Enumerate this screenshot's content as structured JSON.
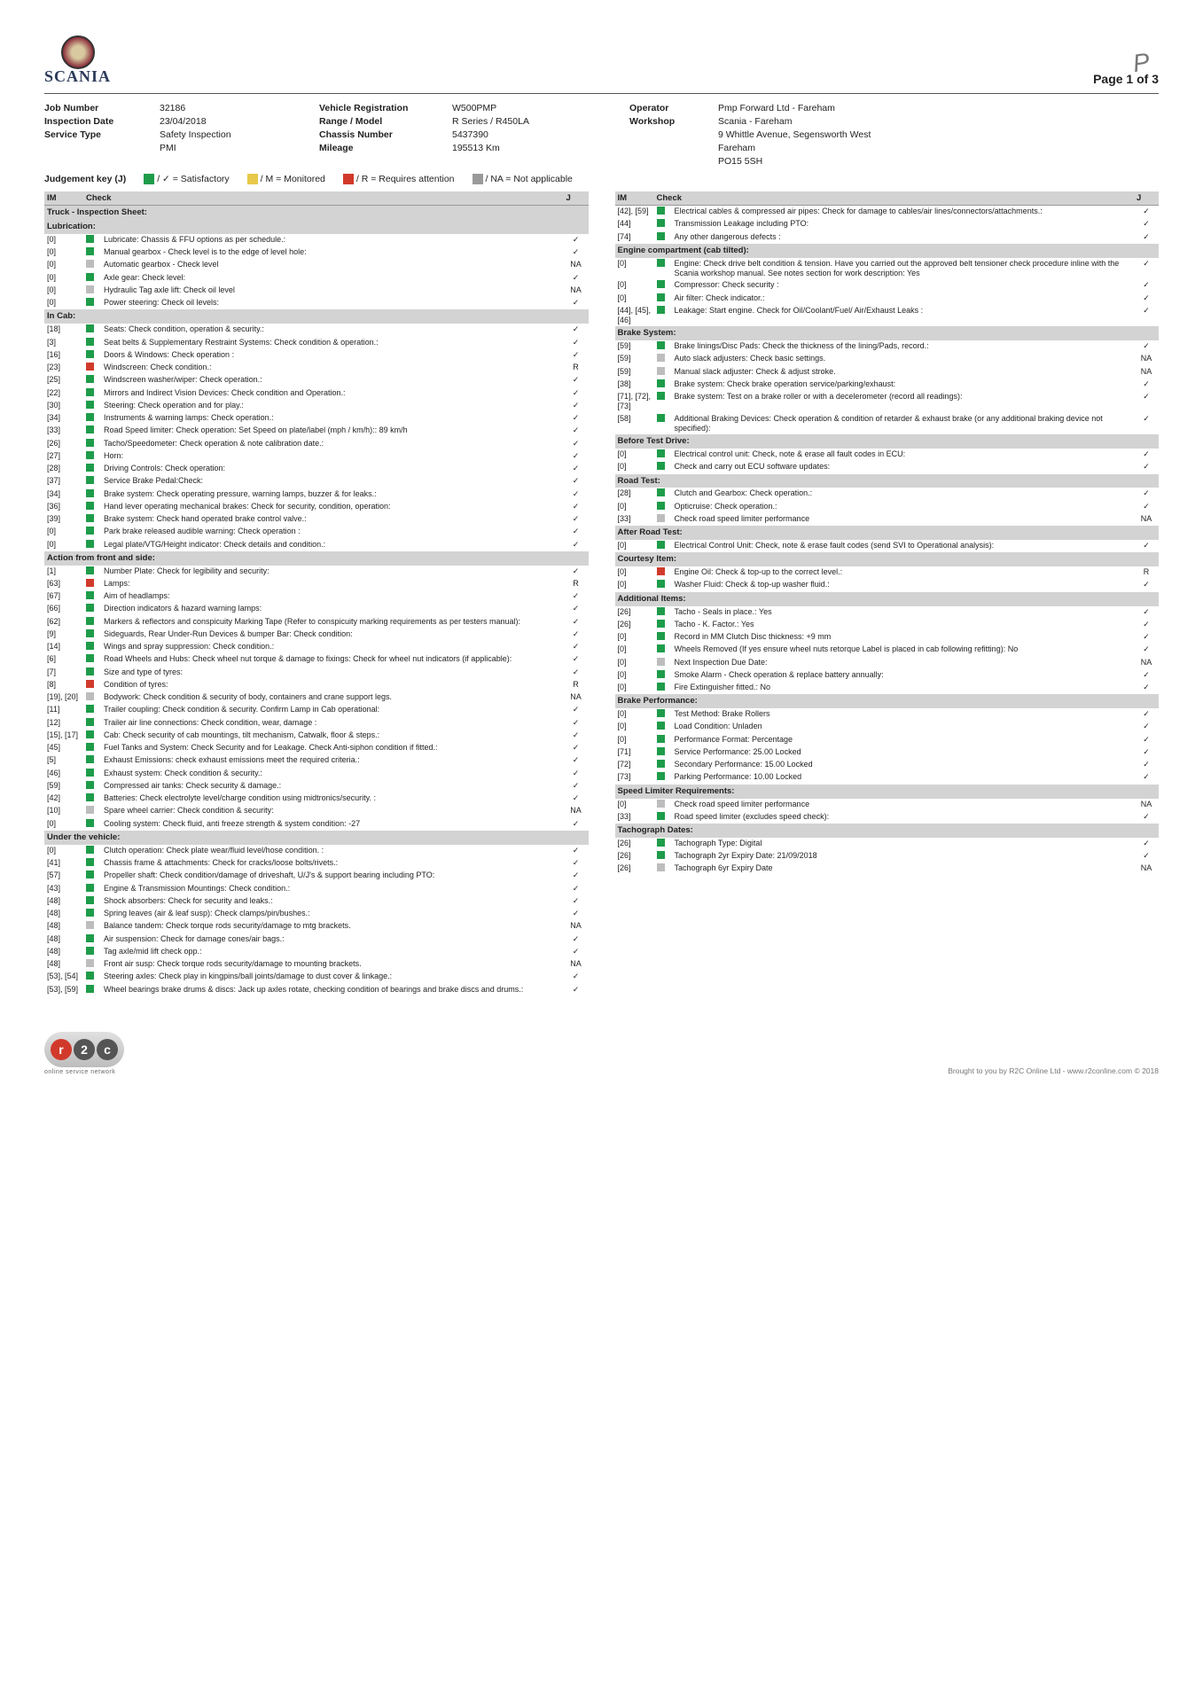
{
  "page": {
    "num": "Page 1 of 3"
  },
  "logo": {
    "text": "SCANIA"
  },
  "initials": "P",
  "header": {
    "rows": [
      [
        "Job Number",
        "32186",
        "Vehicle Registration",
        "W500PMP",
        "Operator",
        "Pmp Forward Ltd - Fareham"
      ],
      [
        "Inspection Date",
        "23/04/2018",
        "Range / Model",
        "R Series / R450LA",
        "Workshop",
        "Scania - Fareham"
      ],
      [
        "Service Type",
        "Safety Inspection",
        "Chassis Number",
        "5437390",
        "",
        "9 Whittle Avenue, Segensworth West"
      ],
      [
        "",
        "PMI",
        "Mileage",
        "195513 Km",
        "",
        "Fareham"
      ],
      [
        "",
        "",
        "",
        "",
        "",
        "PO15 5SH"
      ]
    ]
  },
  "jkey": {
    "label": "Judgement key (J)",
    "items": [
      {
        "color": "g",
        "text": "/ ✓ = Satisfactory"
      },
      {
        "color": "y",
        "text": "/ M = Monitored"
      },
      {
        "color": "r",
        "text": "/ R = Requires attention"
      },
      {
        "color": "gr",
        "text": "/ NA = Not applicable"
      }
    ]
  },
  "th": {
    "im": "IM",
    "check": "Check",
    "j": "J"
  },
  "left": [
    {
      "section": "Truck - Inspection Sheet:"
    },
    {
      "section": "Lubrication:"
    },
    {
      "im": "[0]",
      "c": "g",
      "t": "Lubricate: Chassis & FFU options as per schedule.:",
      "j": "✓"
    },
    {
      "im": "[0]",
      "c": "g",
      "t": "Manual gearbox - Check level is to the edge of level hole:",
      "j": "✓"
    },
    {
      "im": "[0]",
      "c": "gr",
      "t": "Automatic gearbox - Check level",
      "j": "NA"
    },
    {
      "im": "[0]",
      "c": "g",
      "t": "Axle gear: Check level:",
      "j": "✓"
    },
    {
      "im": "[0]",
      "c": "gr",
      "t": "Hydraulic Tag axle lift: Check oil level",
      "j": "NA"
    },
    {
      "im": "[0]",
      "c": "g",
      "t": "Power steering: Check oil levels:",
      "j": "✓"
    },
    {
      "section": "In Cab:"
    },
    {
      "im": "[18]",
      "c": "g",
      "t": "Seats: Check condition, operation & security.:",
      "j": "✓"
    },
    {
      "im": "[3]",
      "c": "g",
      "t": "Seat belts & Supplementary Restraint Systems: Check condition & operation.:",
      "j": "✓"
    },
    {
      "im": "[16]",
      "c": "g",
      "t": "Doors & Windows: Check operation :",
      "j": "✓"
    },
    {
      "im": "[23]",
      "c": "r",
      "t": "Windscreen: Check condition.:",
      "j": "R"
    },
    {
      "im": "[25]",
      "c": "g",
      "t": "Windscreen washer/wiper: Check operation.:",
      "j": "✓"
    },
    {
      "im": "[22]",
      "c": "g",
      "t": "Mirrors and Indirect Vision Devices: Check condition and Operation.:",
      "j": "✓"
    },
    {
      "im": "[30]",
      "c": "g",
      "t": "Steering: Check operation and for play.:",
      "j": "✓"
    },
    {
      "im": "[34]",
      "c": "g",
      "t": "Instruments & warning lamps: Check operation.:",
      "j": "✓"
    },
    {
      "im": "[33]",
      "c": "g",
      "t": "Road Speed limiter:  Check operation: Set Speed on plate/label (mph / km/h):: 89 km/h",
      "j": "✓"
    },
    {
      "im": "[26]",
      "c": "g",
      "t": "Tacho/Speedometer: Check operation & note calibration date.:",
      "j": "✓"
    },
    {
      "im": "[27]",
      "c": "g",
      "t": "Horn:",
      "j": "✓"
    },
    {
      "im": "[28]",
      "c": "g",
      "t": "Driving Controls: Check operation:",
      "j": "✓"
    },
    {
      "im": "[37]",
      "c": "g",
      "t": "Service Brake Pedal:Check:",
      "j": "✓"
    },
    {
      "im": "[34]",
      "c": "g",
      "t": "Brake system: Check operating pressure, warning lamps, buzzer & for leaks.:",
      "j": "✓"
    },
    {
      "im": "[36]",
      "c": "g",
      "t": "Hand lever operating mechanical brakes: Check for security, condition, operation:",
      "j": "✓"
    },
    {
      "im": "[39]",
      "c": "g",
      "t": "Brake system: Check hand operated brake control valve.:",
      "j": "✓"
    },
    {
      "im": "[0]",
      "c": "g",
      "t": "Park brake released audible warning: Check operation :",
      "j": "✓"
    },
    {
      "im": "[0]",
      "c": "g",
      "t": "Legal plate/VTG/Height indicator: Check details and condition.:",
      "j": "✓"
    },
    {
      "section": "Action from front and side:"
    },
    {
      "im": "[1]",
      "c": "g",
      "t": "Number Plate: Check for legibility and security:",
      "j": "✓"
    },
    {
      "im": "[63]",
      "c": "r",
      "t": "Lamps:",
      "j": "R"
    },
    {
      "im": "[67]",
      "c": "g",
      "t": "Aim of headlamps:",
      "j": "✓"
    },
    {
      "im": "[66]",
      "c": "g",
      "t": "Direction indicators & hazard warning lamps:",
      "j": "✓"
    },
    {
      "im": "[62]",
      "c": "g",
      "t": "Markers & reflectors and conspicuity Marking Tape (Refer to conspicuity marking requirements as per testers manual):",
      "j": "✓"
    },
    {
      "im": "[9]",
      "c": "g",
      "t": "Sideguards, Rear Under-Run Devices & bumper Bar: Check condition:",
      "j": "✓"
    },
    {
      "im": "[14]",
      "c": "g",
      "t": "Wings and spray suppression: Check condition.:",
      "j": "✓"
    },
    {
      "im": "[6]",
      "c": "g",
      "t": "Road Wheels and Hubs: Check wheel nut torque & damage to fixings: Check for wheel nut indicators (if applicable):",
      "j": "✓"
    },
    {
      "im": "[7]",
      "c": "g",
      "t": "Size and type of tyres:",
      "j": "✓"
    },
    {
      "im": "[8]",
      "c": "r",
      "t": "Condition of tyres:",
      "j": "R"
    },
    {
      "im": "[19], [20]",
      "c": "gr",
      "t": "Bodywork: Check condition & security of body, containers and crane support legs.",
      "j": "NA"
    },
    {
      "im": "[11]",
      "c": "g",
      "t": "Trailer coupling: Check condition & security. Confirm Lamp in Cab operational:",
      "j": "✓"
    },
    {
      "im": "[12]",
      "c": "g",
      "t": "Trailer air line connections: Check condition, wear, damage :",
      "j": "✓"
    },
    {
      "im": "[15], [17]",
      "c": "g",
      "t": "Cab: Check security of cab mountings, tilt mechanism, Catwalk, floor & steps.:",
      "j": "✓"
    },
    {
      "im": "[45]",
      "c": "g",
      "t": "Fuel Tanks and System: Check Security and for Leakage. Check Anti-siphon condition if fitted.:",
      "j": "✓"
    },
    {
      "im": "[5]",
      "c": "g",
      "t": "Exhaust Emissions: check exhaust emissions meet the required criteria.:",
      "j": "✓"
    },
    {
      "im": "[46]",
      "c": "g",
      "t": "Exhaust system: Check condition & security.:",
      "j": "✓"
    },
    {
      "im": "[59]",
      "c": "g",
      "t": "Compressed air tanks: Check security & damage.:",
      "j": "✓"
    },
    {
      "im": "[42]",
      "c": "g",
      "t": "Batteries: Check electrolyte level/charge condition using midtronics/security.  :",
      "j": "✓"
    },
    {
      "im": "[10]",
      "c": "gr",
      "t": "Spare wheel carrier: Check condition & security:",
      "j": "NA"
    },
    {
      "im": "[0]",
      "c": "g",
      "t": "Cooling system: Check fluid, anti freeze strength & system condition: -27",
      "j": "✓"
    },
    {
      "section": "Under the vehicle:"
    },
    {
      "im": "[0]",
      "c": "g",
      "t": "Clutch operation: Check plate wear/fluid level/hose condition.  :",
      "j": "✓"
    },
    {
      "im": "[41]",
      "c": "g",
      "t": "Chassis frame & attachments: Check for cracks/loose bolts/rivets.:",
      "j": "✓"
    },
    {
      "im": "[57]",
      "c": "g",
      "t": "Propeller shaft: Check condition/damage of driveshaft, U/J's & support bearing including PTO:",
      "j": "✓"
    },
    {
      "im": "[43]",
      "c": "g",
      "t": "Engine & Transmission Mountings: Check condition.:",
      "j": "✓"
    },
    {
      "im": "[48]",
      "c": "g",
      "t": "Shock absorbers: Check for security and leaks.:",
      "j": "✓"
    },
    {
      "im": "[48]",
      "c": "g",
      "t": "Spring leaves (air & leaf susp): Check clamps/pin/bushes.:",
      "j": "✓"
    },
    {
      "im": "[48]",
      "c": "gr",
      "t": "Balance tandem: Check torque rods security/damage to mtg brackets.",
      "j": "NA"
    },
    {
      "im": "[48]",
      "c": "g",
      "t": "Air suspension: Check for damage cones/air bags.:",
      "j": "✓"
    },
    {
      "im": "[48]",
      "c": "g",
      "t": "Tag axle/mid lift check opp.:",
      "j": "✓"
    },
    {
      "im": "[48]",
      "c": "gr",
      "t": "Front air susp: Check torque rods security/damage to mounting brackets.",
      "j": "NA"
    },
    {
      "im": "[53], [54]",
      "c": "g",
      "t": "Steering axles: Check play in kingpins/ball joints/damage to dust cover & linkage.:",
      "j": "✓"
    },
    {
      "im": "[53], [59]",
      "c": "g",
      "t": "Wheel bearings brake drums & discs: Jack up axles rotate, checking condition of bearings and brake discs and drums.:",
      "j": "✓"
    }
  ],
  "right": [
    {
      "im": "[42], [59]",
      "c": "g",
      "t": "Electrical cables & compressed air pipes: Check for damage to cables/air lines/connectors/attachments.:",
      "j": "✓"
    },
    {
      "im": "[44]",
      "c": "g",
      "t": "Transmission Leakage including PTO:",
      "j": "✓"
    },
    {
      "im": "[74]",
      "c": "g",
      "t": "Any other dangerous defects :",
      "j": "✓"
    },
    {
      "section": "Engine compartment (cab tilted):"
    },
    {
      "im": "[0]",
      "c": "g",
      "t": "Engine: Check drive belt condition & tension. Have you carried out the approved belt tensioner check procedure inline with the Scania workshop manual. See notes section for work description: Yes",
      "j": "✓"
    },
    {
      "im": "[0]",
      "c": "g",
      "t": "Compressor: Check security :",
      "j": "✓"
    },
    {
      "im": "[0]",
      "c": "g",
      "t": "Air filter: Check indicator.:",
      "j": "✓"
    },
    {
      "im": "[44], [45], [46]",
      "c": "g",
      "t": "Leakage: Start engine. Check for Oil/Coolant/Fuel/ Air/Exhaust Leaks :",
      "j": "✓"
    },
    {
      "section": "Brake System:"
    },
    {
      "im": "[59]",
      "c": "g",
      "t": "Brake linings/Disc Pads: Check the thickness of the lining/Pads, record.:",
      "j": "✓"
    },
    {
      "im": "[59]",
      "c": "gr",
      "t": "Auto slack adjusters: Check basic settings.",
      "j": "NA"
    },
    {
      "im": "[59]",
      "c": "gr",
      "t": "Manual slack adjuster: Check & adjust stroke.",
      "j": "NA"
    },
    {
      "im": "[38]",
      "c": "g",
      "t": "Brake system: Check brake operation service/parking/exhaust:",
      "j": "✓"
    },
    {
      "im": "[71], [72], [73]",
      "c": "g",
      "t": "Brake system: Test on a brake roller or with a decelerometer (record all readings):",
      "j": "✓"
    },
    {
      "im": "[58]",
      "c": "g",
      "t": "Additional Braking Devices: Check operation & condition of retarder & exhaust brake (or any additional braking device not specified):",
      "j": "✓"
    },
    {
      "section": "Before Test Drive:"
    },
    {
      "im": "[0]",
      "c": "g",
      "t": "Electrical control unit: Check, note & erase all fault codes in ECU:",
      "j": "✓"
    },
    {
      "im": "[0]",
      "c": "g",
      "t": "Check and carry out ECU software updates:",
      "j": "✓"
    },
    {
      "section": "Road Test:"
    },
    {
      "im": "[28]",
      "c": "g",
      "t": "Clutch and Gearbox: Check operation.:",
      "j": "✓"
    },
    {
      "im": "[0]",
      "c": "g",
      "t": "Opticruise: Check operation.:",
      "j": "✓"
    },
    {
      "im": "[33]",
      "c": "gr",
      "t": "Check road speed limiter performance",
      "j": "NA"
    },
    {
      "section": "After Road Test:"
    },
    {
      "im": "[0]",
      "c": "g",
      "t": "Electrical Control Unit: Check, note & erase fault codes (send SVI to Operational analysis):",
      "j": "✓"
    },
    {
      "section": "Courtesy Item:"
    },
    {
      "im": "[0]",
      "c": "r",
      "t": "Engine Oil: Check & top-up to the correct level.:",
      "j": "R"
    },
    {
      "im": "[0]",
      "c": "g",
      "t": "Washer Fluid: Check & top-up washer fluid.:",
      "j": "✓"
    },
    {
      "section": "Additional Items:"
    },
    {
      "im": "[26]",
      "c": "g",
      "t": "Tacho - Seals in place.: Yes",
      "j": "✓"
    },
    {
      "im": "[26]",
      "c": "g",
      "t": "Tacho - K. Factor.: Yes",
      "j": "✓"
    },
    {
      "im": "[0]",
      "c": "g",
      "t": "Record in MM Clutch Disc thickness: +9 mm",
      "j": "✓"
    },
    {
      "im": "[0]",
      "c": "g",
      "t": "Wheels Removed (If yes ensure wheel nuts retorque Label is placed in cab following refitting): No",
      "j": "✓"
    },
    {
      "im": "[0]",
      "c": "gr",
      "t": "Next Inspection Due Date:",
      "j": "NA"
    },
    {
      "im": "[0]",
      "c": "g",
      "t": "Smoke Alarm - Check operation & replace battery annually:",
      "j": "✓"
    },
    {
      "im": "[0]",
      "c": "g",
      "t": "Fire Extinguisher fitted.: No",
      "j": "✓"
    },
    {
      "section": "Brake Performance:"
    },
    {
      "im": "[0]",
      "c": "g",
      "t": "Test Method: Brake Rollers",
      "j": "✓"
    },
    {
      "im": "[0]",
      "c": "g",
      "t": "Load Condition: Unladen",
      "j": "✓"
    },
    {
      "im": "[0]",
      "c": "g",
      "t": "Performance Format: Percentage",
      "j": "✓"
    },
    {
      "im": "[71]",
      "c": "g",
      "t": "Service Performance: 25.00 Locked",
      "j": "✓"
    },
    {
      "im": "[72]",
      "c": "g",
      "t": "Secondary Performance: 15.00 Locked",
      "j": "✓"
    },
    {
      "im": "[73]",
      "c": "g",
      "t": "Parking Performance: 10.00 Locked",
      "j": "✓"
    },
    {
      "section": "Speed Limiter Requirements:"
    },
    {
      "im": "[0]",
      "c": "gr",
      "t": "Check road speed limiter performance",
      "j": "NA"
    },
    {
      "im": "[33]",
      "c": "g",
      "t": "Road speed limiter (excludes speed check):",
      "j": "✓"
    },
    {
      "section": "Tachograph Dates:"
    },
    {
      "im": "[26]",
      "c": "g",
      "t": "Tachograph Type: Digital",
      "j": "✓"
    },
    {
      "im": "[26]",
      "c": "g",
      "t": "Tachograph 2yr Expiry Date: 21/09/2018",
      "j": "✓"
    },
    {
      "im": "[26]",
      "c": "gr",
      "t": "Tachograph 6yr Expiry Date",
      "j": "NA"
    }
  ],
  "footer": {
    "r2c_sub": "online service network",
    "brought": "Brought to you by R2C Online Ltd - www.r2conline.com © 2018"
  }
}
